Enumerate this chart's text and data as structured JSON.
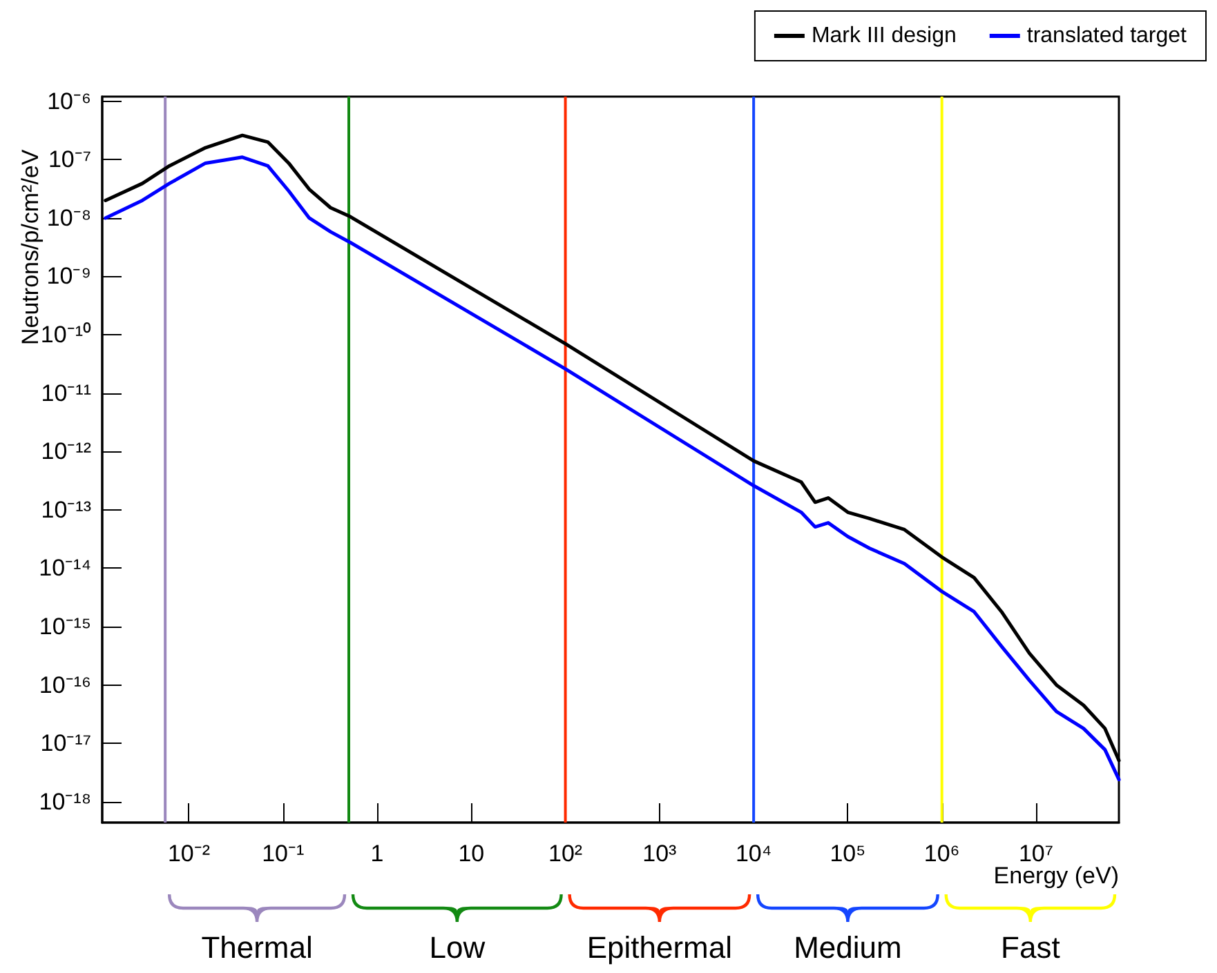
{
  "chart_data": {
    "type": "line",
    "xlabel": "Energy (eV)",
    "ylabel": "Neutrons/p/cm²/eV",
    "log": "xy",
    "grid": false,
    "legend": "top right",
    "marker": "none",
    "line_style": "solid",
    "xlim": [
      0.0012,
      76000000
    ],
    "ylim": [
      4.4e-19,
      1.2e-06
    ],
    "xticks": [
      {
        "value": 0.01,
        "label": "10⁻²"
      },
      {
        "value": 0.1,
        "label": "10⁻¹"
      },
      1,
      10,
      {
        "value": 100,
        "label": "10²"
      },
      {
        "value": 1000,
        "label": "10³"
      },
      {
        "value": 10000,
        "label": "10⁴"
      },
      {
        "value": 100000,
        "label": "10⁵"
      },
      {
        "value": 1000000,
        "label": "10⁶"
      },
      {
        "value": 10000000,
        "label": "10⁷"
      }
    ],
    "yticks": [
      {
        "value": 1e-06,
        "label": "10⁻⁶"
      },
      {
        "value": 1e-07,
        "label": "10⁻⁷"
      },
      {
        "value": 1e-08,
        "label": "10⁻⁸"
      },
      {
        "value": 1e-09,
        "label": "10⁻⁹"
      },
      {
        "value": 1e-10,
        "label": "10⁻¹⁰"
      },
      {
        "value": 1e-11,
        "label": "10⁻¹¹"
      },
      {
        "value": 1e-12,
        "label": "10⁻¹²"
      },
      {
        "value": 1e-13,
        "label": "10⁻¹³"
      },
      {
        "value": 1e-14,
        "label": "10⁻¹⁴"
      },
      {
        "value": 1e-15,
        "label": "10⁻¹⁵"
      },
      {
        "value": 1e-16,
        "label": "10⁻¹⁶"
      },
      {
        "value": 1e-17,
        "label": "10⁻¹⁷"
      },
      {
        "value": 1e-18,
        "label": "10⁻¹⁸"
      }
    ],
    "series": [
      {
        "name": "Mark III design",
        "color": "#000000",
        "x": [
          0.0013,
          0.0032,
          0.0062,
          0.015,
          0.037,
          0.069,
          0.115,
          0.19,
          0.32,
          0.52,
          100,
          10000,
          32000,
          45000,
          62000,
          100000,
          170000,
          400000,
          1000000,
          2200000,
          4300000,
          8500000,
          16500000,
          32000000,
          54000000,
          76000000
        ],
        "values": [
          2e-08,
          3.9e-08,
          7.8e-08,
          1.6e-07,
          2.6e-07,
          2e-07,
          8.7e-08,
          3.1e-08,
          1.5e-08,
          1.05e-08,
          7e-11,
          6.9e-13,
          3e-13,
          1.35e-13,
          1.6e-13,
          9.1e-14,
          7.1e-14,
          4.6e-14,
          1.55e-14,
          6.9e-15,
          1.8e-15,
          3.5e-16,
          1e-16,
          4.5e-17,
          1.8e-17,
          5.1e-18
        ]
      },
      {
        "name": "translated target",
        "color": "#0000ff",
        "x": [
          0.0013,
          0.0032,
          0.0062,
          0.015,
          0.037,
          0.069,
          0.115,
          0.19,
          0.32,
          0.52,
          100,
          10000,
          32000,
          45000,
          62000,
          100000,
          170000,
          400000,
          1000000,
          2200000,
          4300000,
          8500000,
          16500000,
          32000000,
          54000000,
          76000000
        ],
        "values": [
          1e-08,
          2e-08,
          3.9e-08,
          8.7e-08,
          1.1e-07,
          7.8e-08,
          2.9e-08,
          1e-08,
          5.8e-09,
          3.8e-09,
          2.6e-11,
          2.6e-13,
          9.1e-14,
          5.1e-14,
          6e-14,
          3.5e-14,
          2.2e-14,
          1.2e-14,
          4e-15,
          1.8e-15,
          4.6e-16,
          1.2e-16,
          3.5e-17,
          1.8e-17,
          7.8e-18,
          2.4e-18
        ]
      }
    ],
    "ref_lines": [
      {
        "axis": "x",
        "value": 0.0056,
        "color": "#9b87bd"
      },
      {
        "axis": "x",
        "value": 0.5,
        "color": "#138a13"
      },
      {
        "axis": "x",
        "value": 100,
        "color": "#ff2a00"
      },
      {
        "axis": "x",
        "value": 10000,
        "color": "#1446ff"
      },
      {
        "axis": "x",
        "value": 1000000,
        "color": "#ffff00"
      }
    ],
    "annotations": [
      "Thermal",
      "Low",
      "Epithermal",
      "Medium",
      "Fast"
    ]
  }
}
